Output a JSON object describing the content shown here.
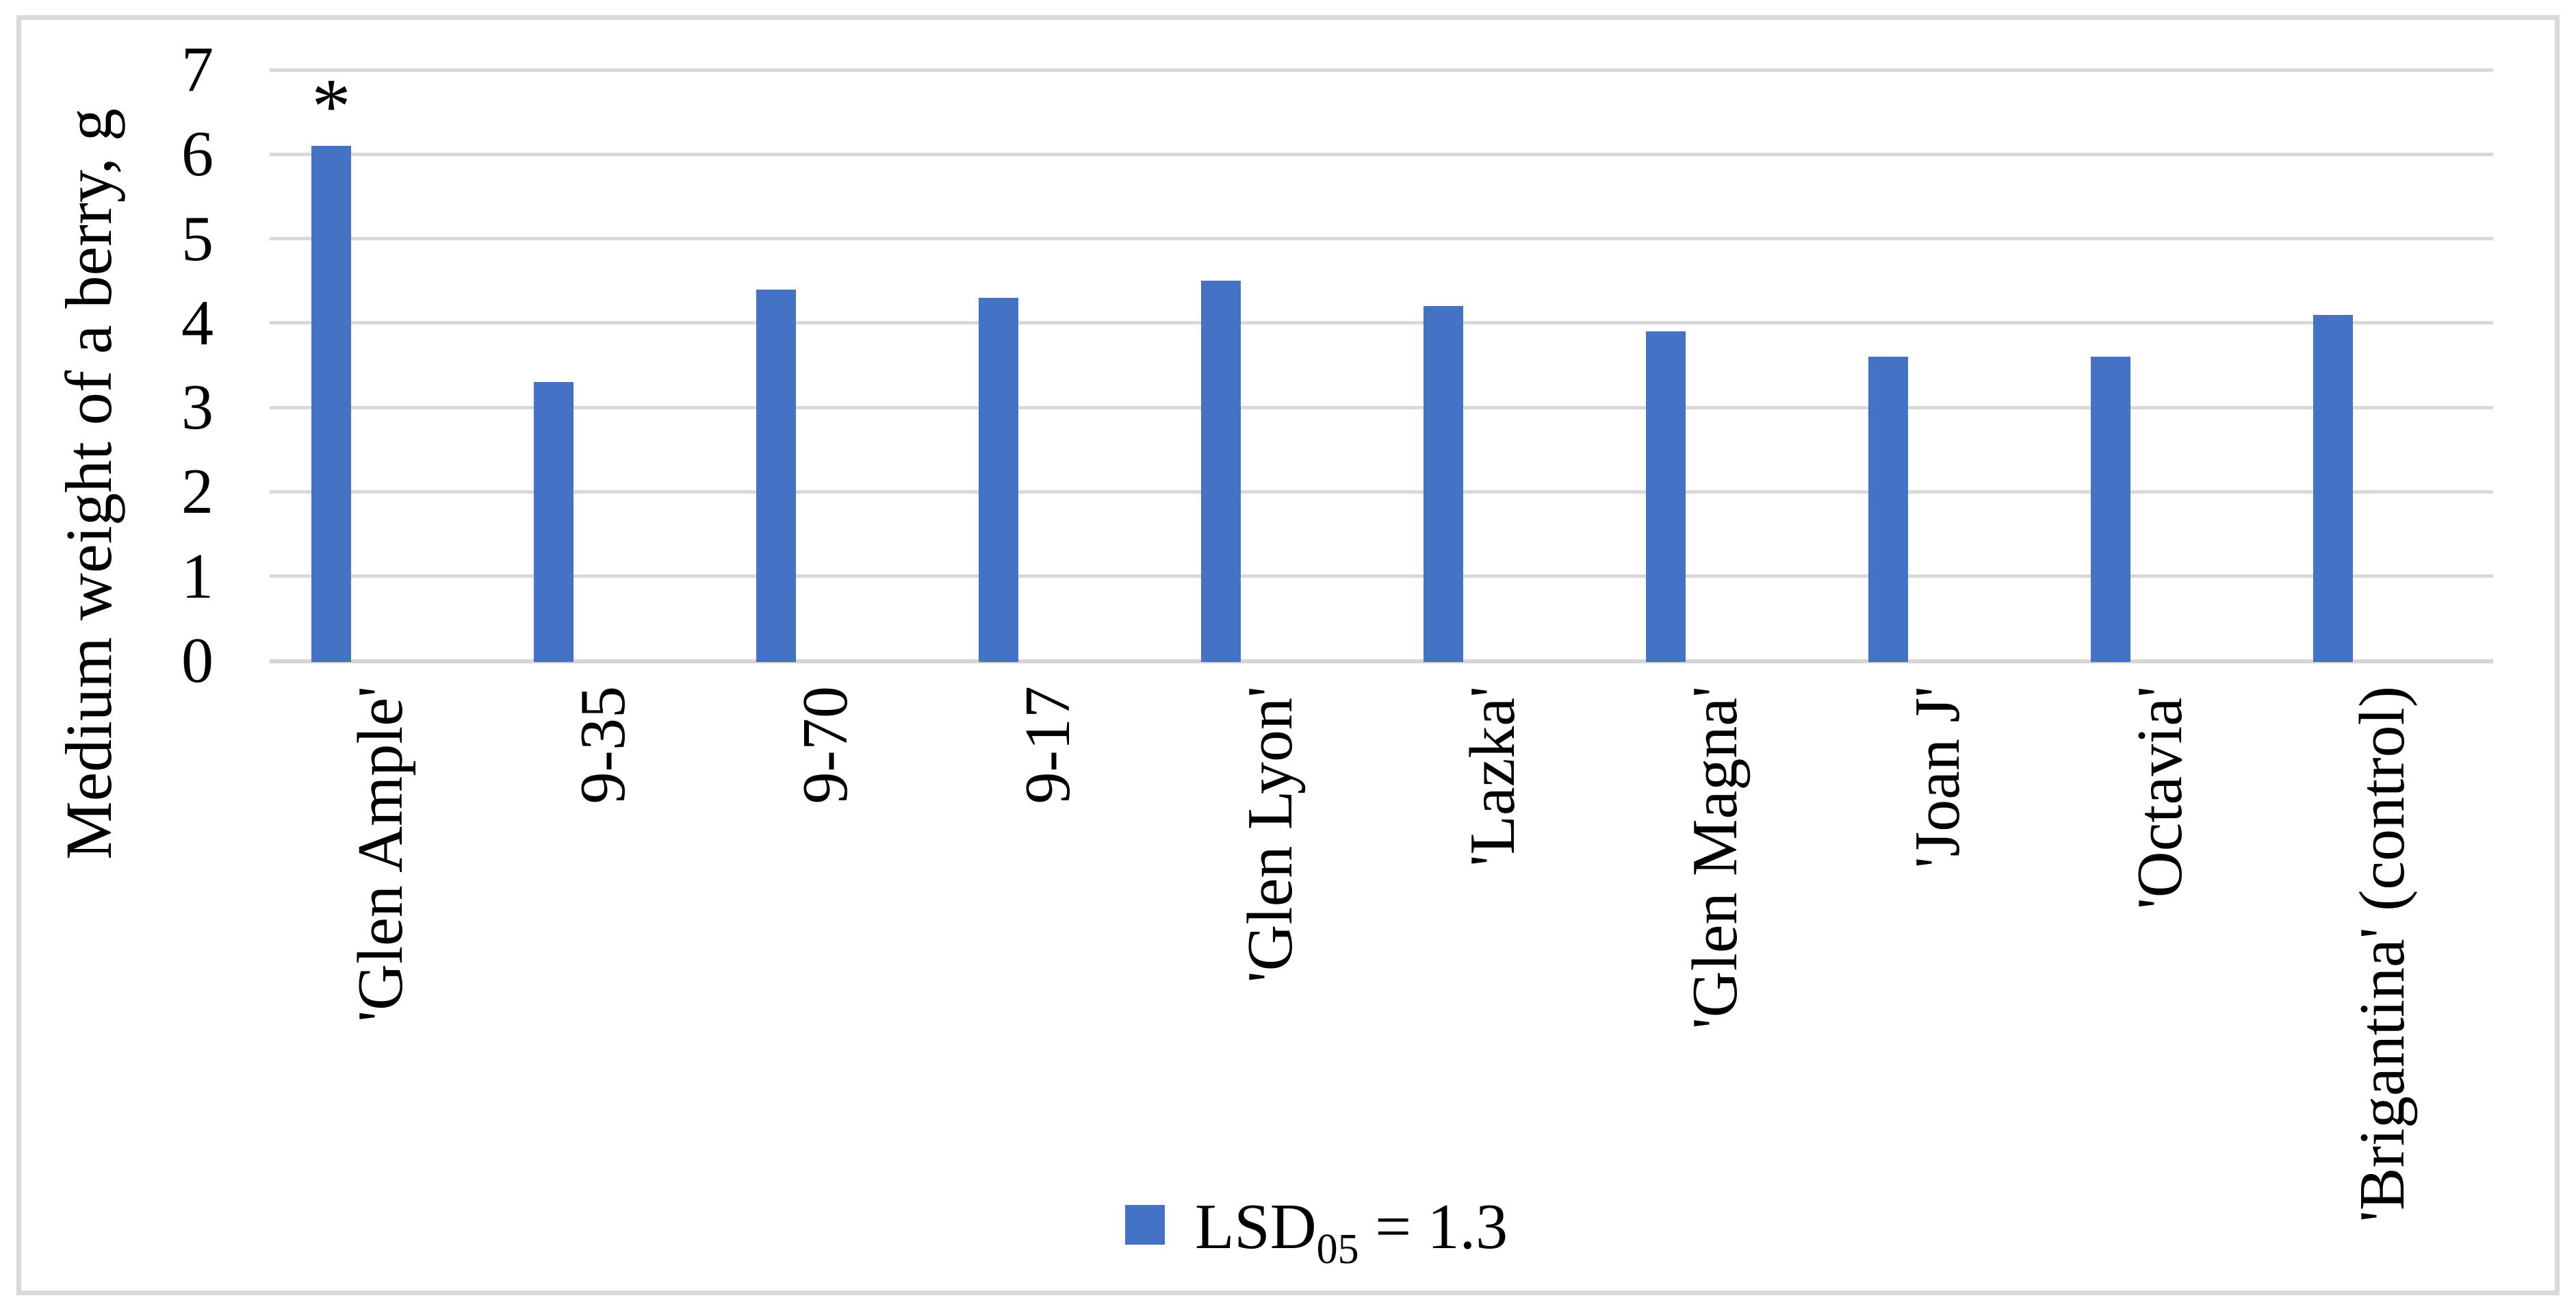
{
  "figure": {
    "background": "#ffffff",
    "border_color": "#d9d9d9",
    "gridline_color": "#d9d9d9",
    "text_color": "#000000"
  },
  "chart_data": {
    "type": "bar",
    "title": "",
    "xlabel": "",
    "ylabel": "Medium weight of a berry, g",
    "ylim": [
      0,
      7
    ],
    "yticks": [
      0,
      1,
      2,
      3,
      4,
      5,
      6,
      7
    ],
    "grid": "horizontal",
    "legend_position": "bottom-center",
    "bar_color": "#4472C4",
    "categories": [
      "'Glen Ample'",
      "9-35",
      "9-70",
      "9-17",
      "'Glen Lyon'",
      "'Lazka'",
      "'Glen Magna'",
      "'Joan J'",
      "'Octavia'",
      "'Brigantina' (control)"
    ],
    "values": [
      6.1,
      3.3,
      4.4,
      4.3,
      4.5,
      4.2,
      3.9,
      3.6,
      3.6,
      4.1
    ],
    "annotations": [
      {
        "category_index": 0,
        "text": "*"
      }
    ],
    "legend": {
      "label_main": "LSD",
      "label_sub": "05",
      "label_rest": " = 1.3"
    }
  }
}
